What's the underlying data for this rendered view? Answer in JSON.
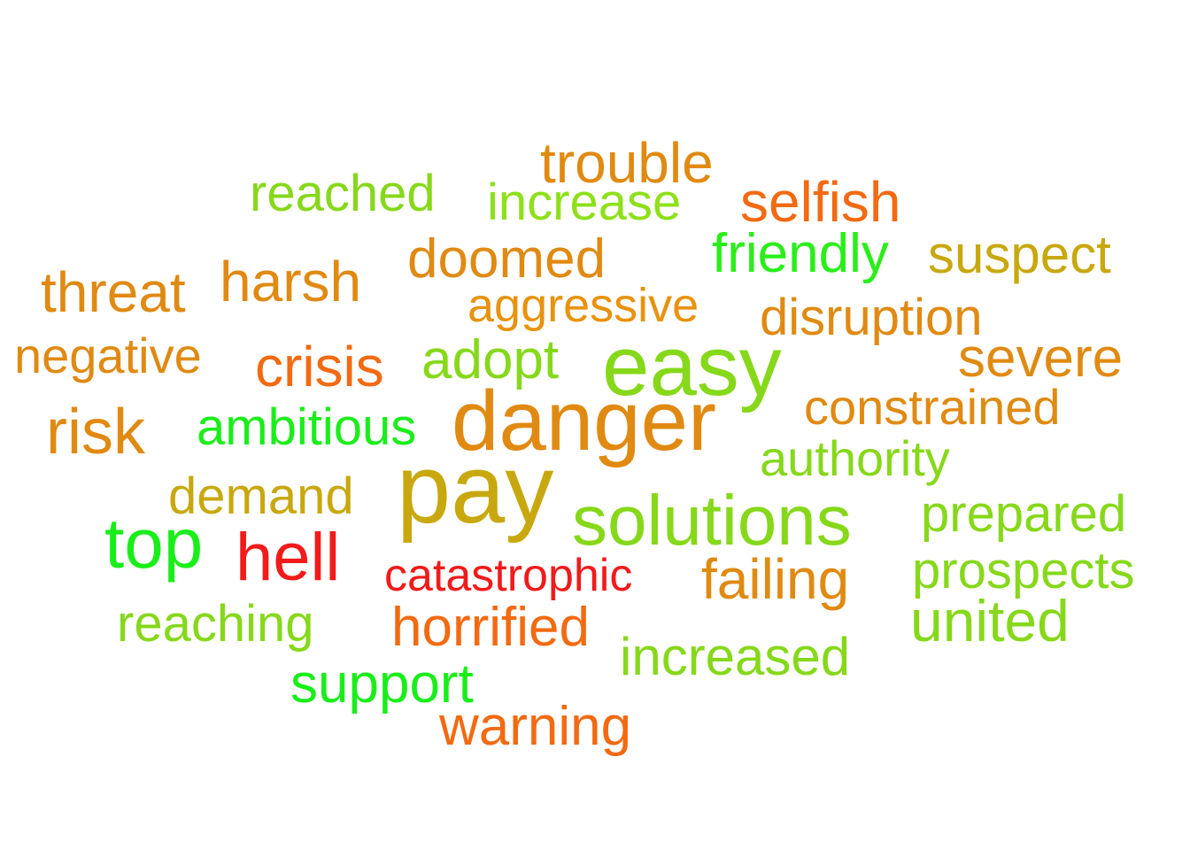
{
  "words": [
    {
      "id": "trouble",
      "text": "trouble",
      "color": "#e08a12"
    },
    {
      "id": "reached",
      "text": "reached",
      "color": "#86d81a"
    },
    {
      "id": "increase",
      "text": "increase",
      "color": "#8ee01a"
    },
    {
      "id": "selfish",
      "text": "selfish",
      "color": "#f26a12"
    },
    {
      "id": "doomed",
      "text": "doomed",
      "color": "#e08a12"
    },
    {
      "id": "friendly",
      "text": "friendly",
      "color": "#2aee1a"
    },
    {
      "id": "suspect",
      "text": "suspect",
      "color": "#c8a80e"
    },
    {
      "id": "threat",
      "text": "threat",
      "color": "#e08a12"
    },
    {
      "id": "harsh",
      "text": "harsh",
      "color": "#e08a12"
    },
    {
      "id": "aggressive",
      "text": "aggressive",
      "color": "#e8920e"
    },
    {
      "id": "disruption",
      "text": "disruption",
      "color": "#e08a12"
    },
    {
      "id": "negative",
      "text": "negative",
      "color": "#e08a12"
    },
    {
      "id": "crisis",
      "text": "crisis",
      "color": "#f26a12"
    },
    {
      "id": "adopt",
      "text": "adopt",
      "color": "#86d81a"
    },
    {
      "id": "easy",
      "text": "easy",
      "color": "#86d81a"
    },
    {
      "id": "severe",
      "text": "severe",
      "color": "#e08a12"
    },
    {
      "id": "risk",
      "text": "risk",
      "color": "#e08a12"
    },
    {
      "id": "ambitious",
      "text": "ambitious",
      "color": "#1aee1a"
    },
    {
      "id": "danger",
      "text": "danger",
      "color": "#e08a12"
    },
    {
      "id": "constrained",
      "text": "constrained",
      "color": "#e08a12"
    },
    {
      "id": "authority",
      "text": "authority",
      "color": "#86d81a"
    },
    {
      "id": "demand",
      "text": "demand",
      "color": "#c8a80e"
    },
    {
      "id": "pay",
      "text": "pay",
      "color": "#c8a80e"
    },
    {
      "id": "solutions",
      "text": "solutions",
      "color": "#86d81a"
    },
    {
      "id": "prepared",
      "text": "prepared",
      "color": "#86d81a"
    },
    {
      "id": "top",
      "text": "top",
      "color": "#1aee1a"
    },
    {
      "id": "hell",
      "text": "hell",
      "color": "#f21a1a"
    },
    {
      "id": "catastrophic",
      "text": "catastrophic",
      "color": "#f21a1a"
    },
    {
      "id": "failing",
      "text": "failing",
      "color": "#e08a12"
    },
    {
      "id": "prospects",
      "text": "prospects",
      "color": "#86d81a"
    },
    {
      "id": "reaching",
      "text": "reaching",
      "color": "#86d81a"
    },
    {
      "id": "horrified",
      "text": "horrified",
      "color": "#f26a12"
    },
    {
      "id": "united",
      "text": "united",
      "color": "#86d81a"
    },
    {
      "id": "increased",
      "text": "increased",
      "color": "#86d81a"
    },
    {
      "id": "support",
      "text": "support",
      "color": "#1aee1a"
    },
    {
      "id": "warning",
      "text": "warning",
      "color": "#f26a12"
    }
  ]
}
